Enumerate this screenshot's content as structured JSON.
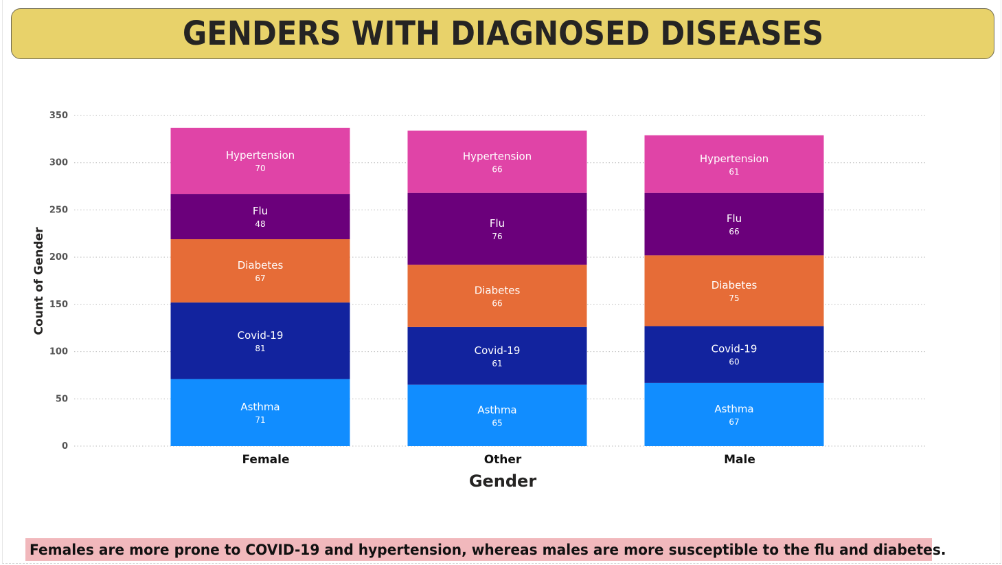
{
  "title": "GENDERS WITH DIAGNOSED DISEASES",
  "caption": "Females are more prone to COVID-19 and hypertension, whereas males are more susceptible to the flu and diabetes.",
  "colors": {
    "banner": "#E8D26A",
    "caption_bg": "#F1B8BC",
    "Asthma": "#118DFF",
    "Covid-19": "#12239E",
    "Diabetes": "#E66C37",
    "Flu": "#6B007B",
    "Hypertension": "#E044A7",
    "grid": "#b9b9b9",
    "axis_text": "#252423",
    "label_text": "#ffffff"
  },
  "chart_data": {
    "type": "bar",
    "stacked": true,
    "title": "GENDERS WITH DIAGNOSED DISEASES",
    "xlabel": "Gender",
    "ylabel": "Count of Gender",
    "categories": [
      "Female",
      "Other",
      "Male"
    ],
    "ylim": [
      0,
      350
    ],
    "yticks": [
      0,
      50,
      100,
      150,
      200,
      250,
      300,
      350
    ],
    "grid": true,
    "legend": "none",
    "series": [
      {
        "name": "Asthma",
        "values": [
          71,
          65,
          67
        ]
      },
      {
        "name": "Covid-19",
        "values": [
          81,
          61,
          60
        ]
      },
      {
        "name": "Diabetes",
        "values": [
          67,
          66,
          75
        ]
      },
      {
        "name": "Flu",
        "values": [
          48,
          76,
          66
        ]
      },
      {
        "name": "Hypertension",
        "values": [
          70,
          66,
          61
        ]
      }
    ]
  }
}
